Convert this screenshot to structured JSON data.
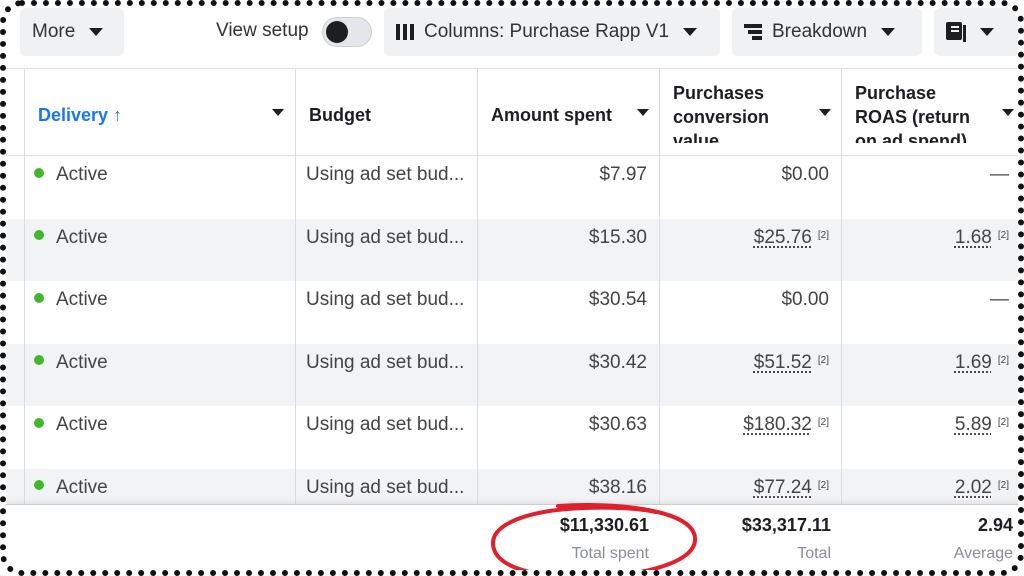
{
  "toolbar": {
    "more_label": "More",
    "view_setup_label": "View setup",
    "columns_label": "Columns: Purchase Rapp V1",
    "breakdown_label": "Breakdown"
  },
  "table": {
    "headers": {
      "delivery": "Delivery ↑",
      "budget": "Budget",
      "amount_spent": "Amount spent",
      "purchases_value_l1": "Purchases",
      "purchases_value_l2": "conversion",
      "purchases_value_l3": "value",
      "roas_l1": "Purchase",
      "roas_l2": "ROAS (return",
      "roas_l3": "on ad spend)"
    },
    "rows": [
      {
        "delivery": "Active",
        "budget": "Using ad set bud...",
        "amount_spent": "$7.97",
        "purchases_value": "$0.00",
        "pv_note": "",
        "roas": "—",
        "roas_note": ""
      },
      {
        "delivery": "Active",
        "budget": "Using ad set bud...",
        "amount_spent": "$15.30",
        "purchases_value": "$25.76",
        "pv_note": "[2]",
        "roas": "1.68",
        "roas_note": "[2]"
      },
      {
        "delivery": "Active",
        "budget": "Using ad set bud...",
        "amount_spent": "$30.54",
        "purchases_value": "$0.00",
        "pv_note": "",
        "roas": "—",
        "roas_note": ""
      },
      {
        "delivery": "Active",
        "budget": "Using ad set bud...",
        "amount_spent": "$30.42",
        "purchases_value": "$51.52",
        "pv_note": "[2]",
        "roas": "1.69",
        "roas_note": "[2]"
      },
      {
        "delivery": "Active",
        "budget": "Using ad set bud...",
        "amount_spent": "$30.63",
        "purchases_value": "$180.32",
        "pv_note": "[2]",
        "roas": "5.89",
        "roas_note": "[2]"
      },
      {
        "delivery": "Active",
        "budget": "Using ad set bud...",
        "amount_spent": "$38.16",
        "purchases_value": "$77.24",
        "pv_note": "[2]",
        "roas": "2.02",
        "roas_note": "[2]"
      }
    ],
    "totals": {
      "amount_spent": "$11,330.61",
      "amount_spent_label": "Total spent",
      "purchases_value": "$33,317.11",
      "purchases_value_label": "Total",
      "roas": "2.94",
      "roas_label": "Average"
    }
  },
  "colors": {
    "accent": "#1877f2",
    "active_status": "#42b72a",
    "annotation_circle": "#e0202a"
  }
}
